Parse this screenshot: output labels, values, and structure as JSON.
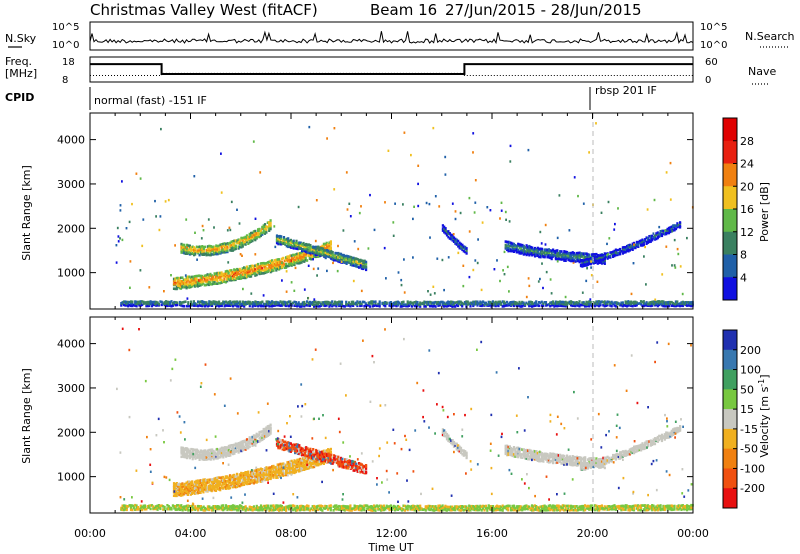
{
  "title": {
    "station": "Christmas Valley West (fitACF)",
    "beam": "Beam 16",
    "dates": "27/Jun/2015 - 28/Jun/2015"
  },
  "top_panels": {
    "nsky_label": "N.Sky",
    "nsearch_label": "N.Search",
    "nsky_ticks": [
      "10^5",
      "10^0"
    ],
    "nsearch_ticks": [
      "10^5",
      "10^0"
    ],
    "freq_label_1": "Freq.",
    "freq_label_2": "[MHz]",
    "freq_ticks": [
      "18",
      "8"
    ],
    "nave_label": "Nave",
    "nave_ticks": [
      "60",
      "0"
    ],
    "cpid_label": "CPID",
    "cpid_segments": [
      {
        "label": "normal (fast) -151 IF",
        "start_hour": 0,
        "end_hour": 19.9
      },
      {
        "label": "rbsp 201 IF",
        "start_hour": 19.9,
        "end_hour": 24
      }
    ],
    "freq_profile": [
      [
        0,
        16
      ],
      [
        2.85,
        16
      ],
      [
        2.85,
        10.5
      ],
      [
        14.9,
        10.5
      ],
      [
        14.9,
        16
      ],
      [
        24,
        16
      ]
    ],
    "nave_profile": [
      [
        0,
        30
      ],
      [
        2.85,
        30
      ],
      [
        2.85,
        35
      ],
      [
        14.9,
        35
      ],
      [
        14.9,
        30
      ],
      [
        24,
        30
      ]
    ]
  },
  "chart_data": [
    {
      "type": "heatmap",
      "panel": "power",
      "xlabel": "",
      "ylabel": "Slant Range [km]",
      "xlim": [
        0,
        24
      ],
      "ylim": [
        180,
        4600
      ],
      "yticks": [
        "1000",
        "2000",
        "3000",
        "4000"
      ],
      "ytick_values": [
        1000,
        2000,
        3000,
        4000
      ],
      "colorbar": {
        "label": "Power [dB]",
        "ticks": [
          "4",
          "8",
          "12",
          "16",
          "20",
          "24",
          "28"
        ],
        "tick_values": [
          4,
          8,
          12,
          16,
          20,
          24,
          28
        ],
        "range": [
          0,
          32
        ],
        "colors": [
          "#1010e0",
          "#2060a8",
          "#3a8060",
          "#60b848",
          "#f0c020",
          "#f08010",
          "#e82010",
          "#e00000"
        ]
      },
      "regions": [
        {
          "x0": 3.6,
          "x1": 7.2,
          "y0": 1550,
          "y1": 1300,
          "y2": 2100,
          "th": 220,
          "val": 22
        },
        {
          "x0": 3.3,
          "x1": 9.6,
          "y0": 750,
          "y1": 900,
          "y2": 1600,
          "th": 260,
          "val": 24
        },
        {
          "x0": 7.4,
          "x1": 11.0,
          "y0": 1750,
          "y1": 1450,
          "y2": 1150,
          "th": 200,
          "val": 16
        },
        {
          "x0": 14.0,
          "x1": 15.0,
          "y0": 2000,
          "y1": 1700,
          "y2": 1450,
          "th": 150,
          "val": 8
        },
        {
          "x0": 16.5,
          "x1": 20.5,
          "y0": 1600,
          "y1": 1350,
          "y2": 1300,
          "th": 220,
          "val": 10
        },
        {
          "x0": 19.5,
          "x1": 23.5,
          "y0": 1200,
          "y1": 1500,
          "y2": 2100,
          "th": 150,
          "val": 7
        },
        {
          "x0": 1.2,
          "x1": 24,
          "y0": 300,
          "y1": 280,
          "y2": 300,
          "th": 120,
          "val": 12
        }
      ]
    },
    {
      "type": "heatmap",
      "panel": "velocity",
      "xlabel": "Time UT",
      "ylabel": "Slant Range [km]",
      "xlim": [
        0,
        24
      ],
      "ylim": [
        180,
        4600
      ],
      "xticks": [
        "00:00",
        "04:00",
        "08:00",
        "12:00",
        "16:00",
        "20:00",
        "00:00"
      ],
      "xtick_values": [
        0,
        4,
        8,
        12,
        16,
        20,
        24
      ],
      "yticks": [
        "1000",
        "2000",
        "3000",
        "4000"
      ],
      "ytick_values": [
        1000,
        2000,
        3000,
        4000
      ],
      "colorbar": {
        "label": "Velocity [m s^-1]",
        "ticks": [
          "200",
          "100",
          "50",
          "15",
          "-15",
          "-50",
          "-100",
          "-200"
        ],
        "colors": [
          "#2030b0",
          "#3878b0",
          "#40a060",
          "#78c840",
          "#c8c8c0",
          "#f0b020",
          "#f08010",
          "#f05010",
          "#e81010"
        ]
      },
      "regions": [
        {
          "x0": 3.6,
          "x1": 7.2,
          "y0": 1550,
          "y1": 1300,
          "y2": 2100,
          "th": 230,
          "val": "gray"
        },
        {
          "x0": 3.3,
          "x1": 9.6,
          "y0": 700,
          "y1": 880,
          "y2": 1500,
          "th": 300,
          "val": "orange"
        },
        {
          "x0": 7.4,
          "x1": 11.0,
          "y0": 1750,
          "y1": 1450,
          "y2": 1150,
          "th": 220,
          "val": "red"
        },
        {
          "x0": 14.0,
          "x1": 15.0,
          "y0": 2000,
          "y1": 1700,
          "y2": 1450,
          "th": 150,
          "val": "gray"
        },
        {
          "x0": 16.5,
          "x1": 20.5,
          "y0": 1600,
          "y1": 1350,
          "y2": 1300,
          "th": 220,
          "val": "gray"
        },
        {
          "x0": 19.5,
          "x1": 23.5,
          "y0": 1200,
          "y1": 1500,
          "y2": 2100,
          "th": 150,
          "val": "gray"
        },
        {
          "x0": 1.2,
          "x1": 24,
          "y0": 300,
          "y1": 280,
          "y2": 300,
          "th": 120,
          "val": "green"
        }
      ]
    }
  ]
}
